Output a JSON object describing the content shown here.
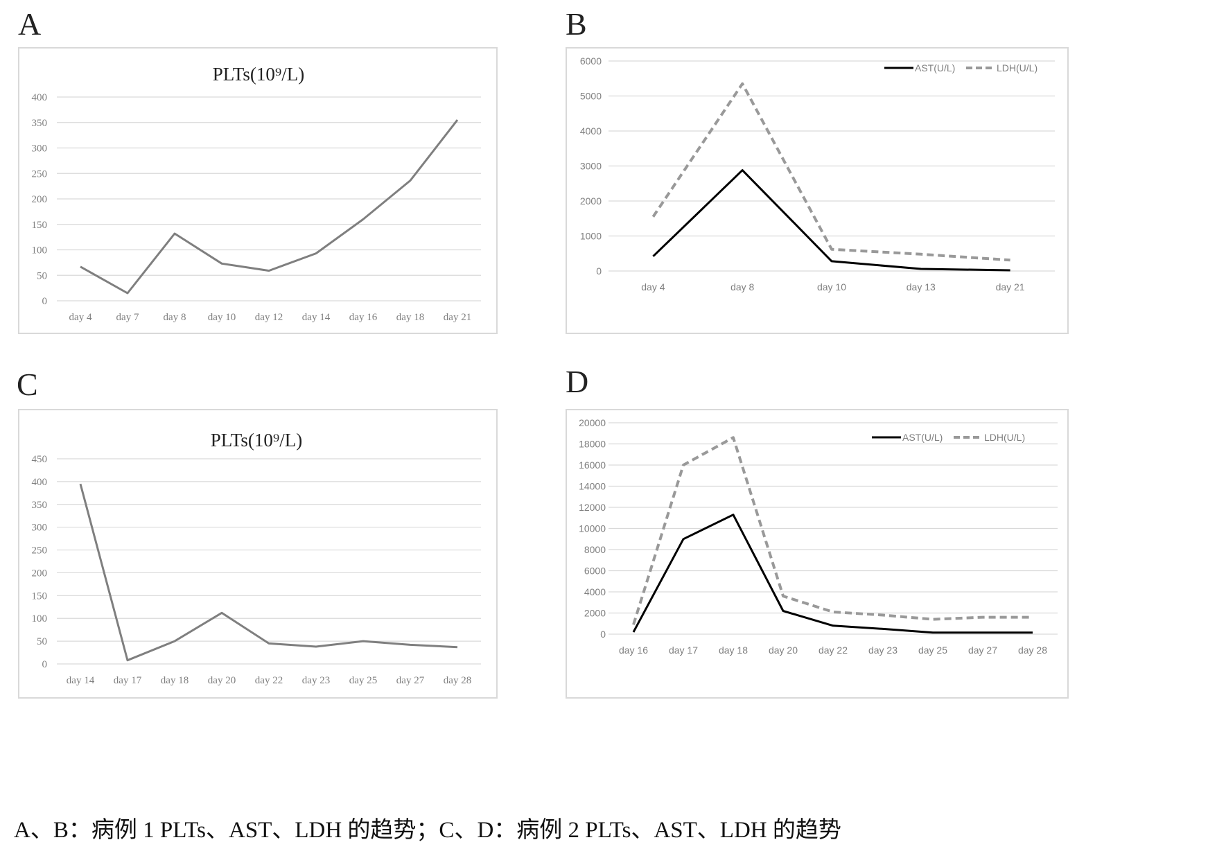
{
  "panels": {
    "a": {
      "letter": "A"
    },
    "b": {
      "letter": "B"
    },
    "c": {
      "letter": "C"
    },
    "d": {
      "letter": "D"
    }
  },
  "caption": "A、B：病例 1 PLTs、AST、LDH 的趋势；C、D：病例 2 PLTs、AST、LDH 的趋势",
  "colors": {
    "plts_line": "#7f7f7f",
    "ast_line": "#000000",
    "ldh_line": "#999999",
    "grid": "#d9d9d9",
    "tick_text": "#7f7f7f"
  },
  "chart_data": [
    {
      "id": "a",
      "type": "line",
      "title": "PLTs(10⁹/L)",
      "categories": [
        "day 4",
        "day 7",
        "day 8",
        "day 10",
        "day 12",
        "day 14",
        "day 16",
        "day 18",
        "day 21"
      ],
      "series": [
        {
          "values": [
            67,
            15,
            132,
            73,
            59,
            93,
            160,
            236,
            355
          ]
        }
      ],
      "yticks": [
        0,
        50,
        100,
        150,
        200,
        250,
        300,
        350,
        400
      ],
      "ylim": [
        0,
        400
      ],
      "grid": true
    },
    {
      "id": "b",
      "type": "line",
      "title": "",
      "categories": [
        "day 4",
        "day 8",
        "day 10",
        "day 13",
        "day 21"
      ],
      "series": [
        {
          "name": "AST(U/L)",
          "style": "solid",
          "values": [
            420,
            2880,
            280,
            60,
            20
          ]
        },
        {
          "name": "LDH(U/L)",
          "style": "dashed",
          "values": [
            1550,
            5350,
            620,
            480,
            310
          ]
        }
      ],
      "yticks": [
        0,
        1000,
        2000,
        3000,
        4000,
        5000,
        6000
      ],
      "ylim": [
        0,
        6000
      ],
      "legend": "top-right",
      "grid": true
    },
    {
      "id": "c",
      "type": "line",
      "title": "PLTs(10⁹/L)",
      "categories": [
        "day 14",
        "day 17",
        "day 18",
        "day 20",
        "day 22",
        "day 23",
        "day 25",
        "day 27",
        "day 28"
      ],
      "series": [
        {
          "values": [
            395,
            8,
            50,
            112,
            45,
            38,
            50,
            42,
            37
          ]
        }
      ],
      "yticks": [
        0,
        50,
        100,
        150,
        200,
        250,
        300,
        350,
        400,
        450
      ],
      "ylim": [
        0,
        450
      ],
      "grid": true
    },
    {
      "id": "d",
      "type": "line",
      "title": "",
      "categories": [
        "day 16",
        "day 17",
        "day 18",
        "day 20",
        "day 22",
        "day 23",
        "day 25",
        "day 27",
        "day 28"
      ],
      "series": [
        {
          "name": "AST(U/L)",
          "style": "solid",
          "values": [
            200,
            9000,
            11300,
            2200,
            800,
            500,
            150,
            150,
            150
          ]
        },
        {
          "name": "LDH(U/L)",
          "style": "dashed",
          "values": [
            900,
            16000,
            18600,
            3600,
            2100,
            1800,
            1400,
            1600,
            1600
          ]
        }
      ],
      "yticks": [
        0,
        2000,
        4000,
        6000,
        8000,
        10000,
        12000,
        14000,
        16000,
        18000,
        20000
      ],
      "ylim": [
        0,
        20000
      ],
      "legend": "top-right",
      "grid": true
    }
  ]
}
